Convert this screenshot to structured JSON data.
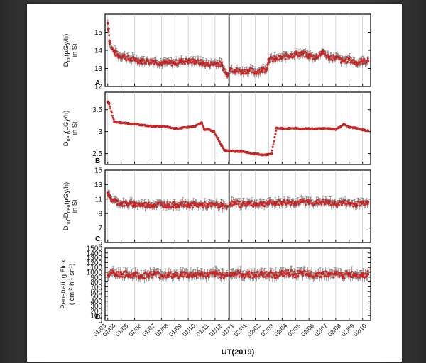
{
  "chart_data": [
    {
      "type": "scatter",
      "panel_label": "A",
      "ylabel": [
        "D",
        "tot",
        "(µGy/h)",
        "in Si"
      ],
      "ylim": [
        12,
        16
      ],
      "yticks": [
        12,
        13,
        14,
        15
      ],
      "y_tick_labels": [
        "12",
        "13",
        "14",
        "15"
      ],
      "marker_color": "#d42424",
      "errorbar_color": "#6b6b6b",
      "segments": [
        {
          "x": [
            1.0,
            1.05,
            1.15,
            1.3,
            1.5,
            1.8,
            2.2,
            2.6,
            3.0,
            3.5,
            4.0,
            4.5,
            5.0,
            5.5,
            6.0,
            6.5,
            7.0,
            7.5,
            8.0,
            8.5,
            9.0,
            9.5,
            9.85,
            9.95
          ],
          "y": [
            15.5,
            15.2,
            14.5,
            14.1,
            13.9,
            13.7,
            13.7,
            13.5,
            13.5,
            13.4,
            13.4,
            13.4,
            13.3,
            13.3,
            13.3,
            13.4,
            13.4,
            13.4,
            13.3,
            13.2,
            13.3,
            13.2,
            12.7,
            12.7
          ]
        },
        {
          "x": [
            10.15,
            10.5,
            11.0,
            11.5,
            12.0,
            12.5,
            12.85,
            13.0,
            13.5,
            14.0,
            14.5,
            15.0,
            15.5,
            16.0,
            16.5,
            17.0,
            17.5,
            18.0,
            18.5,
            19.0,
            19.5,
            20.0,
            20.4
          ],
          "y": [
            13.0,
            12.9,
            12.8,
            12.9,
            12.8,
            12.9,
            13.0,
            13.5,
            13.5,
            13.6,
            13.7,
            13.8,
            13.8,
            13.7,
            13.6,
            13.9,
            13.6,
            13.6,
            13.4,
            13.5,
            13.3,
            13.4,
            13.4
          ]
        }
      ]
    },
    {
      "type": "scatter",
      "panel_label": "B",
      "ylabel": [
        "D",
        "neu",
        "(µGy/h)",
        "in Si"
      ],
      "ylim": [
        2.25,
        3.9
      ],
      "yticks": [
        2.5,
        3.0,
        3.5
      ],
      "y_tick_labels": [
        "2.5",
        "3",
        "3.5"
      ],
      "marker_color": "#d42424",
      "errorbar_color": "#6b6b6b",
      "segments": [
        {
          "x": [
            1.0,
            1.08,
            1.5,
            2.0,
            2.5,
            3.0,
            3.5,
            4.0,
            4.5,
            5.0,
            5.5,
            6.0,
            6.5,
            7.0,
            7.5,
            8.0,
            8.2,
            8.5,
            8.9,
            9.2,
            9.5,
            9.7,
            9.95
          ],
          "y": [
            3.68,
            3.65,
            3.22,
            3.2,
            3.19,
            3.17,
            3.15,
            3.13,
            3.12,
            3.12,
            3.1,
            3.07,
            3.08,
            3.1,
            3.12,
            3.2,
            3.05,
            3.05,
            3.0,
            2.85,
            2.68,
            2.58,
            2.56
          ]
        },
        {
          "x": [
            10.15,
            10.5,
            11.0,
            11.5,
            11.85,
            12.2,
            12.5,
            12.8,
            12.95,
            13.2,
            13.6,
            14.0,
            14.5,
            15.0,
            15.5,
            16.0,
            16.5,
            17.0,
            17.5,
            18.0,
            18.3,
            18.6,
            19.0,
            19.5,
            20.0,
            20.4
          ],
          "y": [
            2.56,
            2.55,
            2.55,
            2.52,
            2.49,
            2.49,
            2.47,
            2.47,
            2.48,
            2.5,
            3.08,
            3.07,
            3.07,
            3.08,
            3.06,
            3.07,
            3.06,
            3.07,
            3.07,
            3.05,
            3.1,
            3.17,
            3.1,
            3.08,
            3.04,
            3.02
          ]
        }
      ]
    },
    {
      "type": "scatter",
      "panel_label": "C",
      "ylabel": [
        "D",
        "tot",
        "-D",
        "neu",
        "(µGy/h)",
        "in Si"
      ],
      "ylim": [
        5,
        15
      ],
      "yticks": [
        5,
        7,
        9,
        11,
        13,
        15
      ],
      "y_tick_labels": [
        "5",
        "7",
        "9",
        "11",
        "13",
        "15"
      ],
      "marker_color": "#d42424",
      "errorbar_color": "#6b6b6b",
      "segments": [
        {
          "x": [
            1.0,
            1.1,
            1.3,
            1.6,
            2.0,
            2.5,
            3.0,
            3.5,
            4.0,
            4.5,
            5.0,
            5.5,
            6.0,
            6.5,
            7.0,
            7.5,
            8.0,
            8.5,
            9.0,
            9.5,
            9.9
          ],
          "y": [
            11.8,
            11.4,
            10.9,
            10.7,
            10.4,
            10.3,
            10.3,
            10.2,
            10.2,
            10.2,
            10.3,
            10.2,
            10.2,
            10.3,
            10.2,
            10.2,
            10.2,
            10.1,
            10.2,
            10.1,
            10.0
          ]
        },
        {
          "x": [
            10.15,
            10.5,
            11.0,
            11.5,
            12.0,
            12.5,
            13.0,
            13.5,
            14.0,
            14.5,
            15.0,
            15.5,
            16.0,
            16.5,
            17.0,
            17.5,
            18.0,
            18.5,
            19.0,
            19.5,
            20.0,
            20.4
          ],
          "y": [
            10.4,
            10.4,
            10.3,
            10.4,
            10.3,
            10.4,
            10.4,
            10.5,
            10.5,
            10.6,
            10.5,
            10.6,
            10.6,
            10.5,
            10.6,
            10.5,
            10.3,
            10.5,
            10.4,
            10.3,
            10.5,
            10.6
          ]
        }
      ]
    },
    {
      "type": "scatter",
      "panel_label": "D",
      "ylabel": [
        "Penetrating Flux",
        "( cm",
        "-2",
        "·h",
        "-1",
        "·sr",
        "-1",
        ")"
      ],
      "ylim": [
        0,
        1500
      ],
      "yticks": [
        0,
        100,
        200,
        300,
        400,
        500,
        600,
        700,
        800,
        900,
        1000,
        1100,
        1200,
        1300,
        1400,
        1500
      ],
      "y_tick_labels": [
        "0",
        "100",
        "200",
        "300",
        "400",
        "500",
        "600",
        "700",
        "800",
        "900",
        "1000",
        "1100",
        "1200",
        "1300",
        "1400",
        "1500"
      ],
      "marker_color": "#d42424",
      "errorbar_color": "#6b6b6b",
      "segments": [
        {
          "x": [
            1.0,
            1.3,
            1.6,
            2.0,
            2.5,
            3.0,
            3.5,
            4.0,
            4.5,
            5.0,
            5.5,
            6.0,
            6.5,
            7.0,
            7.5,
            8.0,
            8.5,
            9.0,
            9.5,
            9.9
          ],
          "y": [
            950,
            990,
            960,
            970,
            940,
            960,
            930,
            950,
            970,
            940,
            950,
            930,
            960,
            940,
            950,
            960,
            940,
            960,
            950,
            940
          ]
        },
        {
          "x": [
            10.15,
            10.5,
            11.0,
            11.5,
            12.0,
            12.5,
            13.0,
            13.5,
            14.0,
            14.5,
            15.0,
            15.5,
            16.0,
            16.5,
            17.0,
            17.5,
            18.0,
            18.5,
            19.0,
            19.5,
            20.0,
            20.4
          ],
          "y": [
            960,
            970,
            950,
            960,
            940,
            960,
            970,
            950,
            960,
            980,
            960,
            970,
            950,
            960,
            970,
            950,
            960,
            940,
            950,
            960,
            950,
            960
          ]
        }
      ]
    }
  ],
  "x_axis": {
    "label": "UT(2019)",
    "xlim": [
      0.8,
      20.6
    ],
    "gap_at": 10.05,
    "tick_positions": [
      1,
      2,
      3,
      4,
      5,
      6,
      7,
      8,
      9,
      10,
      11,
      12,
      13,
      14,
      15,
      16,
      17,
      18,
      19,
      20
    ],
    "tick_labels": [
      "01/03",
      "01/04",
      "01/05",
      "01/06",
      "01/07",
      "01/08",
      "01/09",
      "01/10",
      "01/11",
      "01/12",
      "01/31",
      "02/01",
      "02/02",
      "02/03",
      "02/04",
      "02/05",
      "02/06",
      "02/07",
      "02/08",
      "02/09",
      "02/10"
    ],
    "label_positions": [
      0.9,
      1.6,
      2.55,
      3.55,
      4.55,
      5.55,
      6.55,
      7.55,
      8.55,
      9.55,
      10.45,
      11.4,
      12.4,
      13.4,
      14.4,
      15.4,
      16.4,
      17.4,
      18.4,
      19.4,
      20.3
    ]
  }
}
